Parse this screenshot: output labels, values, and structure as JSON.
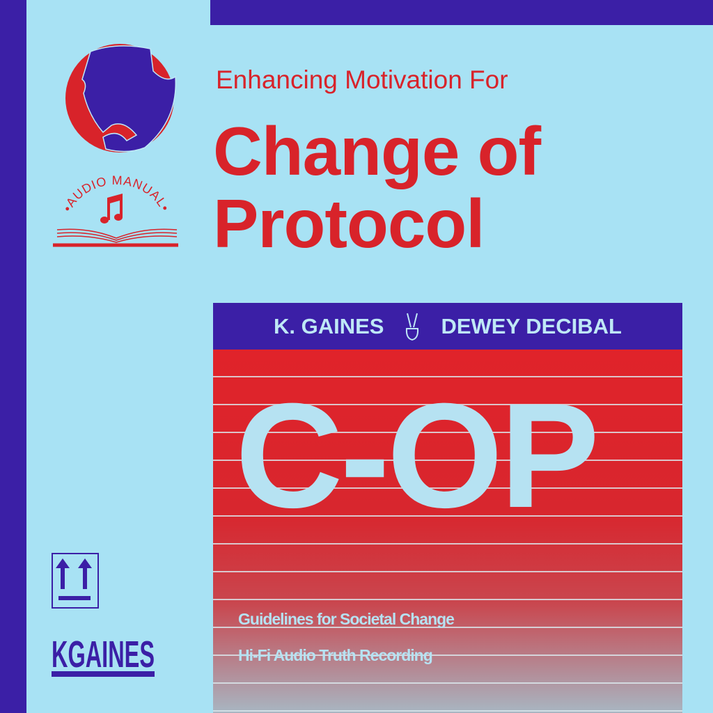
{
  "colors": {
    "background": "#a8e2f4",
    "blue": "#3b1fa6",
    "red": "#d8232a",
    "light": "#b6e2f2"
  },
  "header": {
    "subtitle": "Enhancing Motivation For",
    "title_line1": "Change of",
    "title_line2": "Protocol"
  },
  "logo": {
    "badge_text": "AUDIO MANUAL",
    "brand_text": "KGAINES"
  },
  "banner": {
    "artist1": "K. GAINES",
    "artist2": "DEWEY DECIBAL",
    "icon": "peace-hand-icon"
  },
  "album": {
    "short_title": "C-OP",
    "tagline1": "Guidelines for Societal Change",
    "tagline2": "Hi-Fi Audio Truth Recording"
  },
  "icons": [
    "portrait-silhouette-icon",
    "music-note-icon",
    "open-book-icon",
    "this-side-up-icon"
  ]
}
